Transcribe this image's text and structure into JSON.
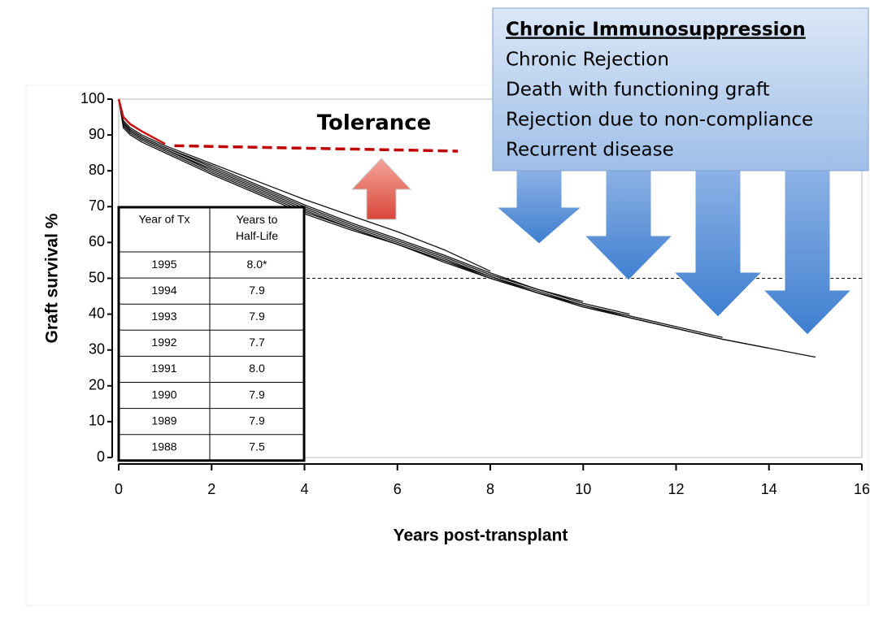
{
  "chart_data": {
    "type": "line",
    "xlabel": "Years post-transplant",
    "ylabel": "Graft  survival %",
    "xlim": [
      0,
      16
    ],
    "xticks": [
      0,
      2,
      4,
      6,
      8,
      10,
      12,
      14,
      16
    ],
    "ylim": [
      0,
      100
    ],
    "yticks": [
      0,
      10,
      20,
      30,
      40,
      50,
      60,
      70,
      80,
      90,
      100
    ],
    "hline": 50,
    "x": [
      0,
      0.1,
      0.25,
      0.5,
      1,
      2,
      3,
      4,
      5,
      6,
      7,
      8,
      9,
      10,
      11,
      12,
      13,
      14,
      15
    ],
    "series": [
      {
        "color": "#111111",
        "values": [
          100,
          92,
          90,
          88,
          85,
          79,
          73.5,
          68,
          63.5,
          59.5,
          54.5,
          50,
          46,
          42,
          39,
          36,
          33,
          30.5,
          28
        ]
      },
      {
        "color": "#111111",
        "values": [
          100,
          92.5,
          90.5,
          88.5,
          85.5,
          79.5,
          74,
          68.5,
          64,
          59.5,
          55,
          50.5,
          46,
          42.5,
          39,
          36,
          33,
          30.5,
          null
        ]
      },
      {
        "color": "#111111",
        "values": [
          100,
          93,
          91,
          89,
          86,
          80.5,
          75,
          69.5,
          64.5,
          60,
          55.5,
          50.5,
          46.5,
          42.5,
          39.5,
          36.5,
          33.5,
          null,
          null
        ]
      },
      {
        "color": "#111111",
        "values": [
          100,
          93,
          91,
          89,
          86,
          80,
          74.5,
          69,
          64,
          59.5,
          55,
          50,
          46,
          42,
          39,
          36,
          null,
          null,
          null
        ]
      },
      {
        "color": "#111111",
        "values": [
          100,
          93.5,
          91.5,
          89.5,
          86.5,
          81,
          75.5,
          70,
          65,
          60.5,
          56,
          51,
          47,
          43,
          40,
          null,
          null,
          null,
          null
        ]
      },
      {
        "color": "#111111",
        "values": [
          100,
          93.5,
          91.5,
          89.5,
          86.5,
          81.5,
          76,
          70.5,
          65.5,
          61,
          56.5,
          51.5,
          47,
          43.5,
          null,
          null,
          null,
          null,
          null
        ]
      },
      {
        "color": "#111111",
        "values": [
          100,
          94,
          92,
          90,
          87,
          82,
          77,
          72,
          67.5,
          63,
          58,
          52,
          null,
          null,
          null,
          null,
          null,
          null,
          null
        ]
      },
      {
        "color": "#cc1111",
        "values": [
          100,
          95,
          93,
          91,
          87.5,
          null,
          null,
          null,
          null,
          null,
          null,
          null,
          null,
          null,
          null,
          null,
          null,
          null,
          null
        ]
      }
    ],
    "tolerance": {
      "label": "Tolerance",
      "x": [
        1.2,
        7.3
      ],
      "y": [
        87,
        85.5
      ],
      "color": "#c00000"
    },
    "table": {
      "header": [
        "Year of Tx",
        "Years to Half-Life"
      ],
      "rows": [
        [
          "1995",
          "8.0*"
        ],
        [
          "1994",
          "7.9"
        ],
        [
          "1993",
          "7.9"
        ],
        [
          "1992",
          "7.7"
        ],
        [
          "1991",
          "8.0"
        ],
        [
          "1990",
          "7.9"
        ],
        [
          "1989",
          "7.9"
        ],
        [
          "1988",
          "7.5"
        ]
      ]
    },
    "callout": {
      "title": "Chronic Immunosuppression",
      "items": [
        "Chronic Rejection",
        "Death with functioning graft",
        "Rejection due to non-compliance",
        "Recurrent disease"
      ]
    }
  }
}
